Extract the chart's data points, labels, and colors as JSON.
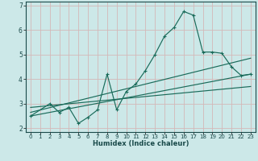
{
  "title": "",
  "xlabel": "Humidex (Indice chaleur)",
  "ylabel": "",
  "xlim": [
    -0.5,
    23.5
  ],
  "ylim": [
    1.85,
    7.15
  ],
  "yticks": [
    2,
    3,
    4,
    5,
    6,
    7
  ],
  "xticks": [
    0,
    1,
    2,
    3,
    4,
    5,
    6,
    7,
    8,
    9,
    10,
    11,
    12,
    13,
    14,
    15,
    16,
    17,
    18,
    19,
    20,
    21,
    22,
    23
  ],
  "bg_color": "#cce8e8",
  "grid_color": "#b8d8d8",
  "line_color": "#1a6b5a",
  "curve1_x": [
    0,
    2,
    3,
    4,
    5,
    6,
    7,
    8,
    9,
    10,
    11,
    12,
    13,
    14,
    15,
    16,
    17,
    18,
    19,
    20,
    21,
    22,
    23
  ],
  "curve1_y": [
    2.5,
    3.0,
    2.65,
    2.85,
    2.2,
    2.45,
    2.75,
    4.2,
    2.75,
    3.5,
    3.8,
    4.35,
    5.0,
    5.75,
    6.1,
    6.75,
    6.6,
    5.1,
    5.1,
    5.05,
    4.5,
    4.15,
    4.2
  ],
  "curve2_x": [
    0,
    23
  ],
  "curve2_y": [
    2.5,
    4.2
  ],
  "curve3_x": [
    0,
    23
  ],
  "curve3_y": [
    2.65,
    4.85
  ],
  "curve4_x": [
    0,
    23
  ],
  "curve4_y": [
    2.85,
    3.7
  ]
}
